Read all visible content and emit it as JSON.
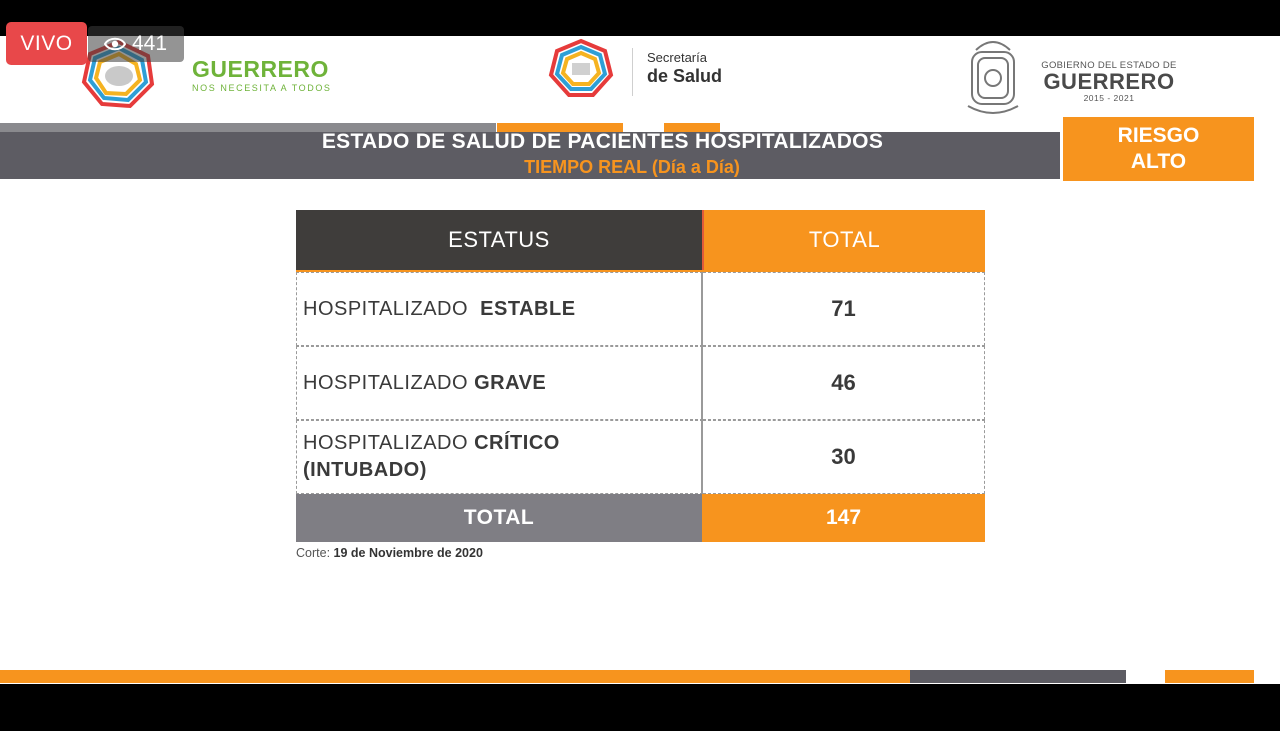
{
  "live": {
    "badge": "VIVO",
    "viewer_count": "441"
  },
  "header": {
    "left_logo": {
      "name": "GUERRERO",
      "tagline": "NOS NECESITA A TODOS"
    },
    "center_logo": {
      "line1": "Secretaría",
      "line2": "de Salud"
    },
    "right_logo": {
      "line1": "GOBIERNO DEL ESTADO DE",
      "line2": "GUERRERO",
      "line3": "2015 - 2021"
    }
  },
  "title": {
    "main": "ESTADO DE SALUD DE PACIENTES HOSPITALIZADOS",
    "sub": "TIEMPO REAL (Día a Día)",
    "risk_line1": "RIESGO",
    "risk_line2": "ALTO"
  },
  "table": {
    "headers": {
      "status": "ESTATUS",
      "total": "TOTAL"
    },
    "rows": [
      {
        "prefix": "HOSPITALIZADO",
        "bold": "ESTABLE",
        "bold2": "",
        "value": "71"
      },
      {
        "prefix": "HOSPITALIZADO",
        "bold": "GRAVE",
        "bold2": "",
        "value": "46"
      },
      {
        "prefix": "HOSPITALIZADO",
        "bold": "CRÍTICO",
        "bold2": "(INTUBADO)",
        "value": "30"
      }
    ],
    "footer": {
      "label": "TOTAL",
      "value": "147"
    }
  },
  "corte": {
    "label": "Corte:",
    "date": "19 de Noviembre de 2020"
  },
  "colors": {
    "accent": "#f7941e",
    "dark": "#3f3d3b",
    "gray": "#5d5c63",
    "live_red": "#e8484a"
  }
}
